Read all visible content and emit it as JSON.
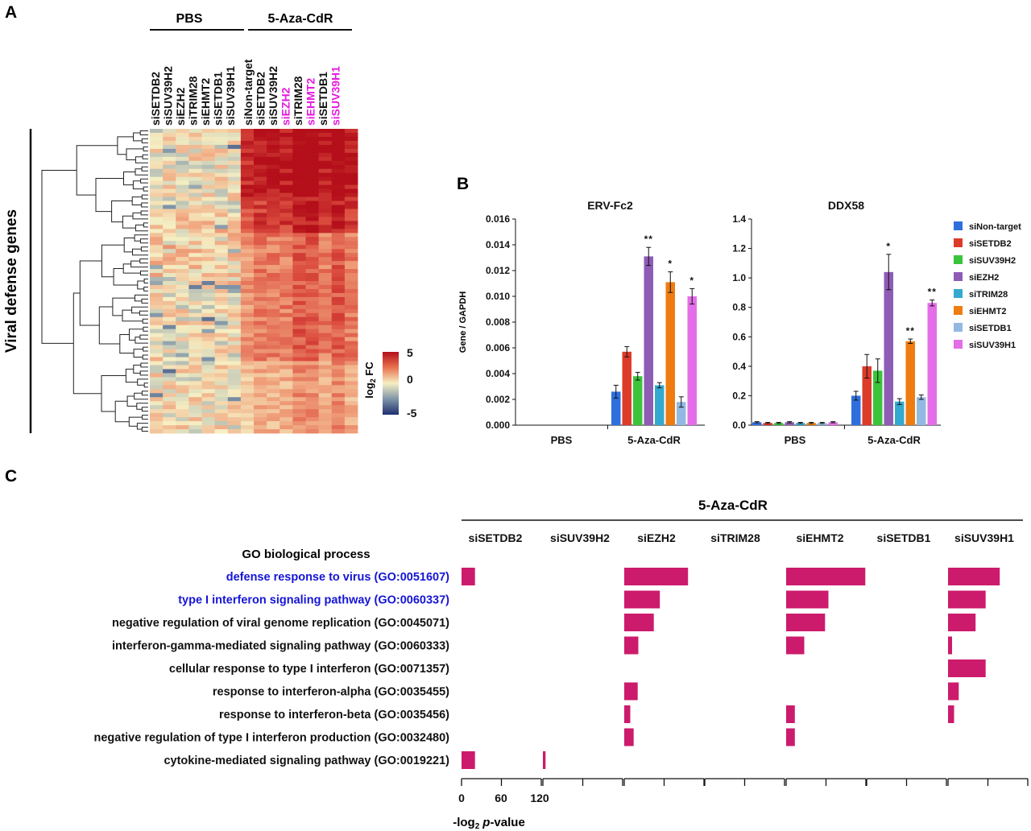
{
  "panels": {
    "a": "A",
    "b": "B",
    "c": "C"
  },
  "colors": {
    "siNon-target": "#2f6fdc",
    "siSETDB2": "#dc3b2a",
    "siSUV39H2": "#3bc43b",
    "siEZH2": "#8e5bb5",
    "siTRIM28": "#33a9cf",
    "siEHMT2": "#ee7c10",
    "siSETDB1": "#93b9e2",
    "siSUV39H1": "#e36ee8",
    "highlight_label": "#e619e1",
    "go_bar": "#cc1b6c",
    "go_highlight_text": "#1515d6",
    "heat_high": "#b40f1a",
    "heat_mid": "#f6efc3",
    "heat_low": "#1e2f6e"
  },
  "heatmap": {
    "group_labels": [
      "PBS",
      "5-Aza-CdR"
    ],
    "pbs_columns": [
      "siSETDB2",
      "siSUV39H2",
      "siEZH2",
      "siTRIM28",
      "siEHMT2",
      "siSETDB1",
      "siSUV39H1"
    ],
    "aza_columns": [
      "siNon-target",
      "siSETDB2",
      "siSUV39H2",
      "siEZH2",
      "siTRIM28",
      "siEHMT2",
      "siSETDB1",
      "siSUV39H1"
    ],
    "aza_highlighted": [
      "siEZH2",
      "siEHMT2",
      "siSUV39H1"
    ],
    "row_group_label": "Viral defense genes",
    "legend_title": "log2 FC",
    "legend_title_main": "log",
    "legend_title_sub": "2",
    "legend_title_suffix": " FC",
    "legend_ticks": [
      "5",
      "0",
      "-5"
    ],
    "scale_min": -5,
    "scale_max": 5
  },
  "chart_data": [
    {
      "type": "bar",
      "title": "ERV-Fc2",
      "ylabel": "Gene / GAPDH",
      "groups": [
        "PBS",
        "5-Aza-CdR"
      ],
      "ylim": [
        0,
        0.016
      ],
      "yticks": [
        "0.000",
        "0.002",
        "0.004",
        "0.006",
        "0.008",
        "0.010",
        "0.012",
        "0.014",
        "0.016"
      ],
      "series": [
        {
          "name": "siNon-target",
          "values": [
            0,
            0.0026
          ],
          "errors": [
            0,
            0.0005
          ],
          "sig": [
            "",
            ""
          ]
        },
        {
          "name": "siSETDB2",
          "values": [
            0,
            0.0057
          ],
          "errors": [
            0,
            0.0004
          ],
          "sig": [
            "",
            ""
          ]
        },
        {
          "name": "siSUV39H2",
          "values": [
            0,
            0.0038
          ],
          "errors": [
            0,
            0.0003
          ],
          "sig": [
            "",
            ""
          ]
        },
        {
          "name": "siEZH2",
          "values": [
            0,
            0.0131
          ],
          "errors": [
            0,
            0.0007
          ],
          "sig": [
            "",
            "**"
          ]
        },
        {
          "name": "siTRIM28",
          "values": [
            0,
            0.0031
          ],
          "errors": [
            0,
            0.0002
          ],
          "sig": [
            "",
            ""
          ]
        },
        {
          "name": "siEHMT2",
          "values": [
            0,
            0.0111
          ],
          "errors": [
            0,
            0.0008
          ],
          "sig": [
            "",
            "*"
          ]
        },
        {
          "name": "siSETDB1",
          "values": [
            0,
            0.0018
          ],
          "errors": [
            0,
            0.0004
          ],
          "sig": [
            "",
            ""
          ]
        },
        {
          "name": "siSUV39H1",
          "values": [
            0,
            0.01
          ],
          "errors": [
            0,
            0.0006
          ],
          "sig": [
            "",
            "*"
          ]
        }
      ]
    },
    {
      "type": "bar",
      "title": "DDX58",
      "ylabel": "",
      "groups": [
        "PBS",
        "5-Aza-CdR"
      ],
      "ylim": [
        0,
        1.4
      ],
      "yticks": [
        "0.0",
        "0.2",
        "0.4",
        "0.6",
        "0.8",
        "1.0",
        "1.2",
        "1.4"
      ],
      "series": [
        {
          "name": "siNon-target",
          "values": [
            0.02,
            0.2
          ],
          "errors": [
            0.004,
            0.03
          ],
          "sig": [
            "",
            ""
          ]
        },
        {
          "name": "siSETDB2",
          "values": [
            0.015,
            0.4
          ],
          "errors": [
            0.004,
            0.08
          ],
          "sig": [
            "",
            ""
          ]
        },
        {
          "name": "siSUV39H2",
          "values": [
            0.015,
            0.37
          ],
          "errors": [
            0.004,
            0.08
          ],
          "sig": [
            "",
            ""
          ]
        },
        {
          "name": "siEZH2",
          "values": [
            0.02,
            1.04
          ],
          "errors": [
            0.004,
            0.12
          ],
          "sig": [
            "",
            "*"
          ]
        },
        {
          "name": "siTRIM28",
          "values": [
            0.015,
            0.16
          ],
          "errors": [
            0.004,
            0.02
          ],
          "sig": [
            "",
            ""
          ]
        },
        {
          "name": "siEHMT2",
          "values": [
            0.015,
            0.57
          ],
          "errors": [
            0.004,
            0.015
          ],
          "sig": [
            "",
            "**"
          ]
        },
        {
          "name": "siSETDB1",
          "values": [
            0.015,
            0.19
          ],
          "errors": [
            0.004,
            0.015
          ],
          "sig": [
            "",
            ""
          ]
        },
        {
          "name": "siSUV39H1",
          "values": [
            0.02,
            0.83
          ],
          "errors": [
            0.004,
            0.02
          ],
          "sig": [
            "",
            "**"
          ]
        }
      ]
    },
    {
      "type": "bar",
      "title": "5-Aza-CdR",
      "row_header": "GO biological process",
      "xlabel": "-log2 p-value",
      "xlabel_main": "-log",
      "xlabel_sub": "2",
      "xlabel_italic": "p",
      "xlabel_suffix": "-value",
      "xticks": [
        "0",
        "60",
        "120"
      ],
      "xlim": [
        0,
        120
      ],
      "categories": [
        "defense response to virus (GO:0051607)",
        "type I interferon signaling pathway (GO:0060337)",
        "negative regulation of viral genome replication (GO:0045071)",
        "interferon-gamma-mediated signaling pathway (GO:0060333)",
        "cellular response to type I interferon (GO:0071357)",
        "response to interferon-alpha (GO:0035455)",
        "response to interferon-beta (GO:0035456)",
        "negative regulation of type I interferon production (GO:0032480)",
        "cytokine-mediated signaling pathway (GO:0019221)"
      ],
      "highlighted_categories": [
        0,
        1
      ],
      "series": [
        {
          "name": "siSETDB2",
          "values": [
            20,
            0,
            0,
            0,
            0,
            0,
            0,
            0,
            20
          ]
        },
        {
          "name": "siSUV39H2",
          "values": [
            0,
            0,
            0,
            0,
            0,
            0,
            0,
            0,
            4
          ]
        },
        {
          "name": "siEZH2",
          "values": [
            95,
            53,
            44,
            21,
            0,
            20,
            9,
            14,
            0
          ]
        },
        {
          "name": "siTRIM28",
          "values": [
            0,
            0,
            0,
            0,
            0,
            0,
            0,
            0,
            0
          ]
        },
        {
          "name": "siEHMT2",
          "values": [
            118,
            63,
            58,
            27,
            0,
            0,
            13,
            13,
            0
          ]
        },
        {
          "name": "siSETDB1",
          "values": [
            0,
            0,
            0,
            0,
            0,
            0,
            0,
            0,
            0
          ]
        },
        {
          "name": "siSUV39H1",
          "values": [
            77,
            56,
            41,
            6,
            56,
            16,
            9,
            0,
            0
          ]
        }
      ]
    }
  ]
}
